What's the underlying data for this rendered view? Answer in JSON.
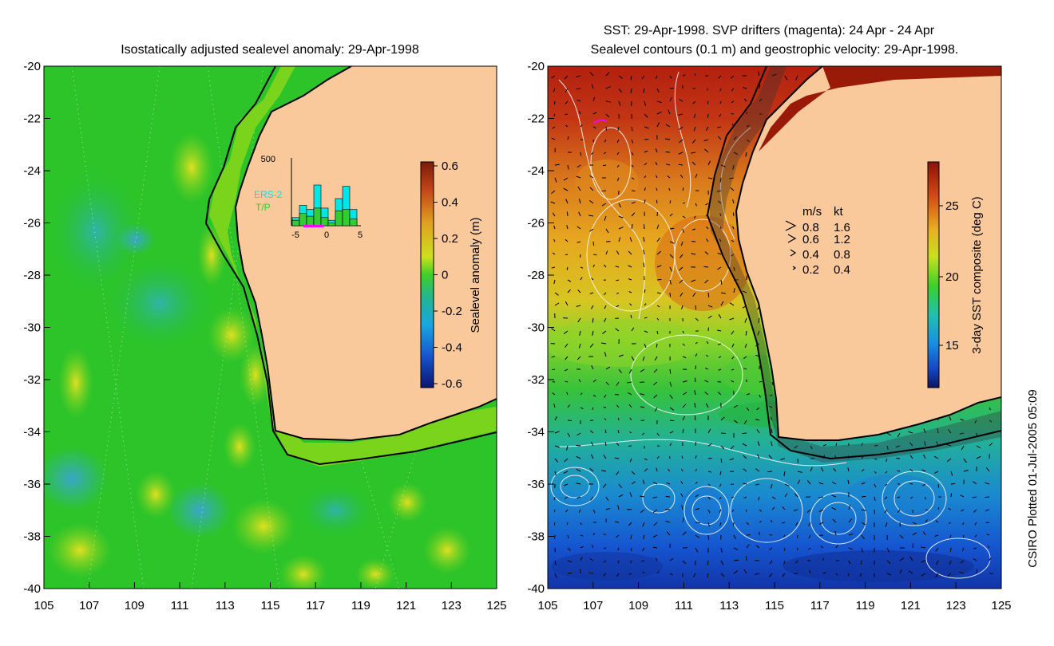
{
  "left_panel": {
    "title": "Isostatically adjusted sealevel anomaly: 29-Apr-1998",
    "colorbar": {
      "label": "Sealevel anomaly (m)",
      "ticks": [
        "0.6",
        "0.4",
        "0.2",
        "0",
        "-0.2",
        "-0.4",
        "-0.6"
      ]
    },
    "inset": {
      "ymax_label": "500",
      "xticks": [
        "-5",
        "0",
        "5"
      ],
      "legend": [
        "ERS-2",
        "T/P"
      ],
      "legend_colors": [
        "#00e5e5",
        "#33cc33"
      ],
      "bars_total": [
        60,
        150,
        120,
        300,
        130,
        40,
        200,
        290,
        120
      ],
      "bars_tp": [
        40,
        90,
        70,
        130,
        60,
        20,
        110,
        120,
        50
      ]
    }
  },
  "right_panel": {
    "title_line1": "SST: 29-Apr-1998. SVP drifters (magenta): 24 Apr - 24 Apr",
    "title_line2": "Sealevel contours (0.1 m) and geostrophic velocity: 29-Apr-1998.",
    "colorbar": {
      "label": "3-day SST composite (deg C)",
      "ticks": [
        "25",
        "20",
        "15"
      ]
    },
    "velocity_key": {
      "header_ms": "m/s",
      "header_kt": "kt",
      "rows": [
        {
          "ms": "0.8",
          "kt": "1.6"
        },
        {
          "ms": "0.6",
          "kt": "1.2"
        },
        {
          "ms": "0.4",
          "kt": "0.8"
        },
        {
          "ms": "0.2",
          "kt": "0.4"
        }
      ]
    }
  },
  "axes": {
    "lat_labels": [
      "-20",
      "-22",
      "-24",
      "-26",
      "-28",
      "-30",
      "-32",
      "-34",
      "-36",
      "-38",
      "-40"
    ],
    "lon_labels": [
      "105",
      "107",
      "109",
      "111",
      "113",
      "115",
      "117",
      "119",
      "121",
      "123",
      "125"
    ]
  },
  "credit": "CSIRO Plotted 01-Jul-2005 05:09",
  "colors": {
    "land": "#f9c99c",
    "coastline": "#000000",
    "shelf_contour": "#000000",
    "drifter": "#ff00ff"
  }
}
